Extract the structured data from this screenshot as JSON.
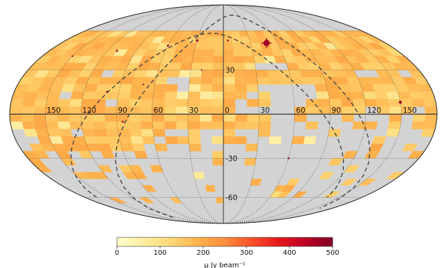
{
  "map": {
    "projection": "mollweide",
    "background_color": "#d3d3d3",
    "graticule": {
      "longitude_step_deg": 30,
      "latitude_step_deg": 30,
      "style": "dotted"
    },
    "longitude_labels": [
      "150",
      "120",
      "90",
      "60",
      "30",
      "0",
      "30",
      "60",
      "90",
      "120",
      "150"
    ],
    "latitude_labels": [
      "30",
      "-30",
      "-60"
    ],
    "overlay_curves": {
      "style": "dashed",
      "color": "#444444",
      "count": 2
    }
  },
  "colorbar": {
    "colormap": "YlOrRd",
    "stops": [
      "#ffffcc",
      "#ffeda0",
      "#fed976",
      "#feb24c",
      "#fd8d3c",
      "#fc4e2a",
      "#e31a1c",
      "#bd0026",
      "#800026"
    ],
    "min": 0,
    "max": 500,
    "tick_labels": [
      "0",
      "100",
      "200",
      "300",
      "400",
      "500"
    ],
    "label": "μ Jy beam⁻¹"
  }
}
